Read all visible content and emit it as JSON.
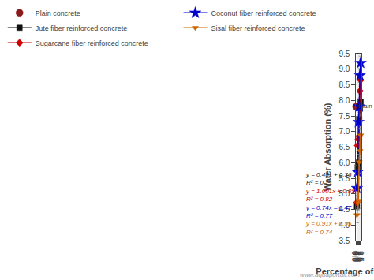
{
  "chart_data": {
    "type": "line",
    "xlabel": "Percentage of Fibers",
    "ylabel": "Water Absorption (%)",
    "xlim": [
      0.0,
      3.5
    ],
    "ylim": [
      3.5,
      9.5
    ],
    "xticks": [
      {
        "value": 0,
        "label": "0.0"
      },
      0.5,
      {
        "value": 1,
        "label": "1.0"
      },
      1.5,
      {
        "value": 2,
        "label": "2.0"
      },
      2.5,
      {
        "value": 3,
        "label": "3.0"
      },
      3.5
    ],
    "yticks": [
      3.5,
      {
        "value": 4,
        "label": "4.0"
      },
      4.5,
      {
        "value": 5,
        "label": "5.0"
      },
      5.5,
      {
        "value": 6,
        "label": "6.0"
      },
      6.5,
      {
        "value": 7,
        "label": "7.0"
      },
      7.5,
      {
        "value": 8,
        "label": "8.0"
      },
      8.5,
      {
        "value": 9,
        "label": "9.0"
      },
      9.5
    ],
    "grid": true,
    "legend": "top",
    "series": [
      {
        "name": "Plain concrete",
        "type": "scatter",
        "color": "#8B1A1A",
        "marker": "circle",
        "x": [
          0.0
        ],
        "values": [
          7.8
        ]
      },
      {
        "name": "Jute fiber reinforced concrete",
        "type": "line",
        "color": "#111111",
        "marker": "square",
        "x": [
          0.5,
          1.0,
          1.5,
          2.0,
          2.5,
          3.0
        ],
        "values": [
          4.6,
          5.85,
          6.0,
          7.4,
          7.75,
          7.95
        ],
        "errors": [
          0.25,
          0.2,
          0.25,
          0.22,
          0.22,
          0.25
        ]
      },
      {
        "name": "Sugarcane fiber reinforced concrete",
        "type": "line",
        "color": "#CC0000",
        "marker": "diamond",
        "x": [
          0.5,
          1.0,
          1.5,
          2.0,
          2.5,
          3.0
        ],
        "values": [
          4.72,
          6.55,
          6.75,
          6.85,
          8.3,
          8.65
        ],
        "errors": [
          0.22,
          0.2,
          0.22,
          0.25,
          0.22,
          0.2
        ]
      },
      {
        "name": "Coconut fiber reinforced concrete",
        "type": "line",
        "color": "#0000CC",
        "marker": "star",
        "x": [
          0.5,
          1.0,
          1.5,
          2.0,
          2.5,
          3.0
        ],
        "values": [
          5.18,
          5.7,
          7.3,
          7.8,
          8.8,
          9.2
        ],
        "errors": [
          0.22,
          0.22,
          0.2,
          0.25,
          0.22,
          0.22
        ]
      },
      {
        "name": "Sisal fiber reinforced concrete",
        "type": "line",
        "color": "#CC6600",
        "marker": "triangle-down",
        "x": [
          0.5,
          1.0,
          1.5,
          2.0,
          2.5,
          3.0
        ],
        "values": [
          4.32,
          4.7,
          4.78,
          6.02,
          6.38,
          6.88
        ],
        "errors": [
          0.25,
          0.22,
          0.25,
          0.25,
          0.22,
          0.22
        ]
      }
    ],
    "annotations": [
      {
        "text": "Plain concrete",
        "x": 0.06,
        "y": 7.65,
        "color": "#333333"
      },
      {
        "text": "y = 0.46x + 0.36",
        "color": "#111111"
      },
      {
        "text": "R² = 0.71",
        "color": "#111111"
      },
      {
        "text": "y = 1.001x + 0.85",
        "color": "#CC0000"
      },
      {
        "text": "R² = 0.82",
        "color": "#CC0000"
      },
      {
        "text": "y = 0.74x – 0.47",
        "color": "#0000CC"
      },
      {
        "text": "R² = 0.77",
        "color": "#0000CC"
      },
      {
        "text": "y = 0.91x + 0.95",
        "color": "#CC6600"
      },
      {
        "text": "R² = 0.74",
        "color": "#CC6600"
      }
    ],
    "watermark": "www.aquaportail.com"
  }
}
